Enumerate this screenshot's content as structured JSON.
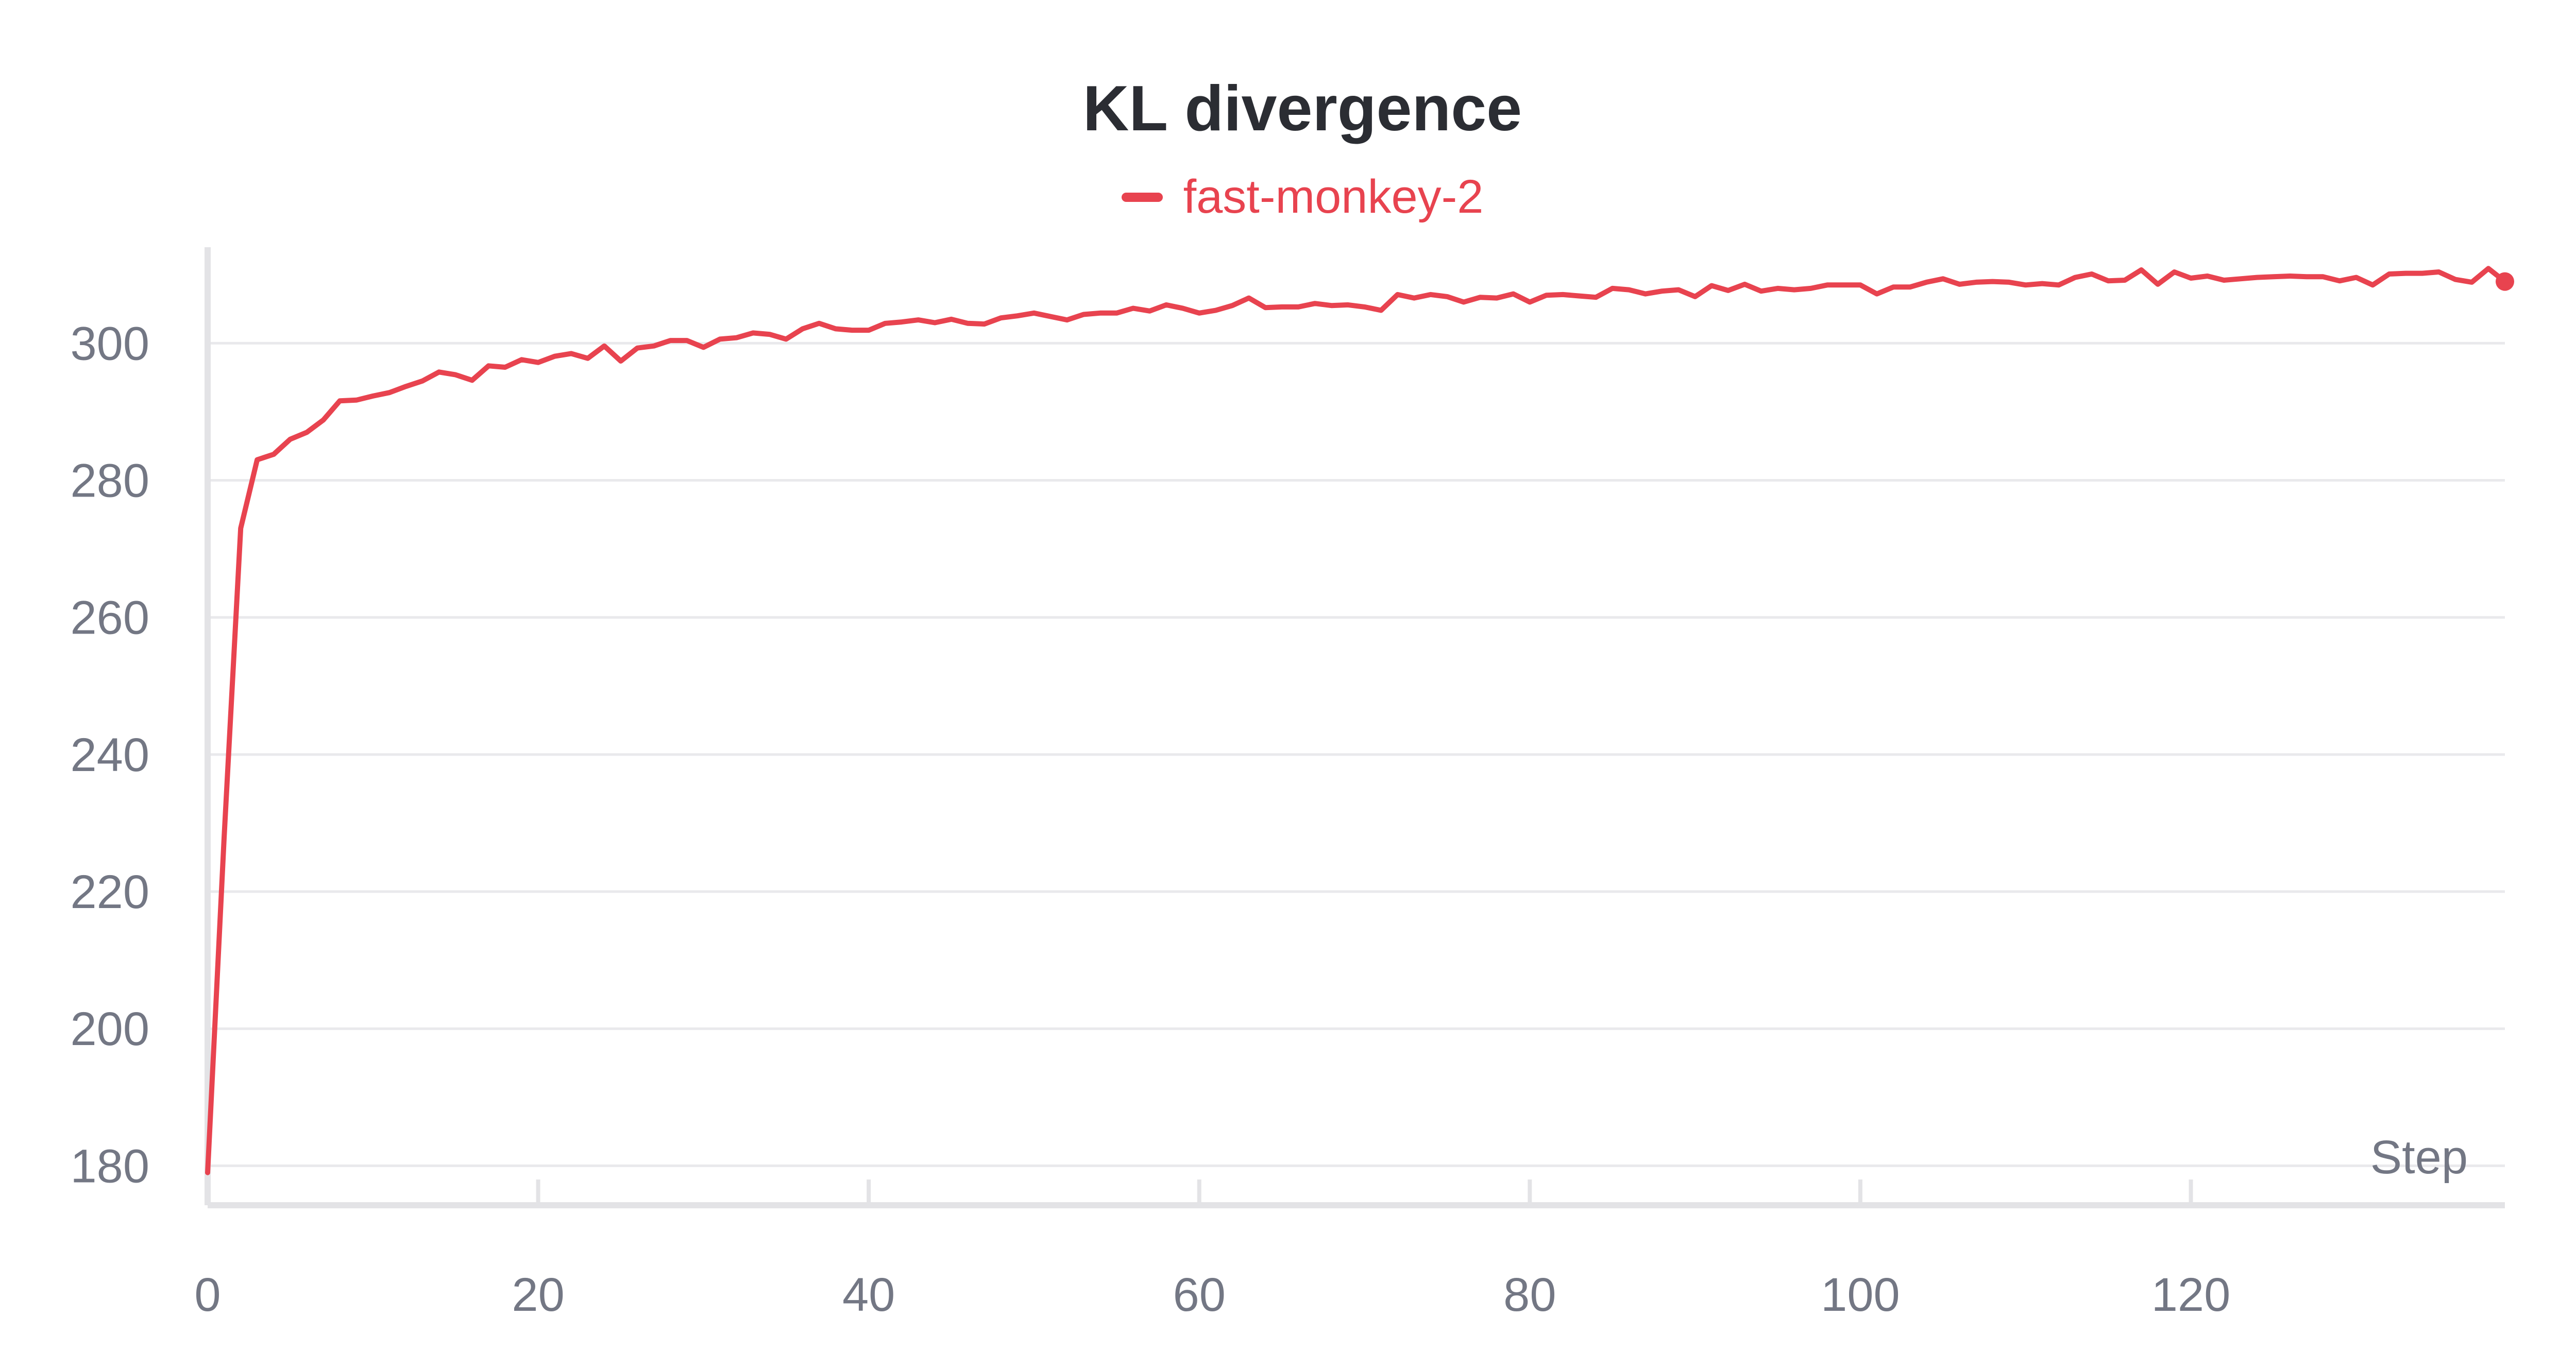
{
  "chart_data": {
    "type": "line",
    "title": "KL divergence",
    "xlabel": "Step",
    "ylabel": "",
    "xlim": [
      0,
      139
    ],
    "ylim": [
      178,
      311
    ],
    "x_ticks": [
      0,
      20,
      40,
      60,
      80,
      100,
      120
    ],
    "y_ticks": [
      180,
      200,
      220,
      240,
      260,
      280,
      300
    ],
    "grid": "horizontal",
    "legend_position": "top-center",
    "series": [
      {
        "name": "fast-monkey-2",
        "color": "#e8434f",
        "x": [
          0,
          1,
          2,
          3,
          4,
          5,
          6,
          7,
          8,
          9,
          10,
          11,
          12,
          13,
          14,
          15,
          16,
          17,
          18,
          19,
          20,
          21,
          22,
          23,
          24,
          25,
          26,
          27,
          28,
          29,
          30,
          31,
          32,
          33,
          34,
          35,
          36,
          37,
          38,
          39,
          40,
          41,
          42,
          43,
          44,
          45,
          46,
          47,
          48,
          49,
          50,
          51,
          52,
          53,
          54,
          55,
          56,
          57,
          58,
          59,
          60,
          61,
          62,
          63,
          64,
          65,
          66,
          67,
          68,
          69,
          70,
          71,
          72,
          73,
          74,
          75,
          76,
          77,
          78,
          79,
          80,
          81,
          82,
          83,
          84,
          85,
          86,
          87,
          88,
          89,
          90,
          91,
          92,
          93,
          94,
          95,
          96,
          97,
          98,
          99,
          100,
          101,
          102,
          103,
          104,
          105,
          106,
          107,
          108,
          109,
          110,
          111,
          112,
          113,
          114,
          115,
          116,
          117,
          118,
          119,
          120,
          121,
          122,
          123,
          124,
          125,
          126,
          127,
          128,
          129,
          130,
          131,
          132,
          133,
          134,
          135,
          136,
          137,
          138,
          139
        ],
        "y": [
          179,
          228,
          273,
          283,
          283.8,
          286,
          287,
          288.8,
          291.6,
          291.7,
          292.3,
          292.8,
          293.7,
          294.5,
          295.8,
          295.4,
          294.6,
          296.7,
          296.5,
          297.6,
          297.2,
          298.1,
          298.5,
          297.8,
          299.6,
          297.4,
          299.3,
          299.6,
          300.4,
          300.4,
          299.4,
          300.6,
          300.8,
          301.5,
          301.3,
          300.6,
          302.1,
          302.9,
          302.1,
          301.9,
          301.9,
          302.9,
          303.1,
          303.4,
          303.0,
          303.5,
          302.9,
          302.8,
          303.7,
          304.0,
          304.4,
          303.9,
          303.4,
          304.2,
          304.4,
          304.4,
          305.1,
          304.7,
          305.6,
          305.1,
          304.4,
          304.8,
          305.5,
          306.6,
          305.2,
          305.3,
          305.3,
          305.8,
          305.5,
          305.6,
          305.3,
          304.8,
          307.1,
          306.6,
          307.1,
          306.8,
          306.0,
          306.7,
          306.6,
          307.2,
          306.0,
          307.0,
          307.1,
          306.9,
          306.7,
          308.0,
          307.8,
          307.2,
          307.6,
          307.8,
          306.8,
          308.4,
          307.7,
          308.6,
          307.6,
          308.0,
          307.8,
          308.0,
          308.5,
          308.5,
          308.5,
          307.2,
          308.2,
          308.2,
          308.9,
          309.4,
          308.6,
          308.9,
          309.0,
          308.9,
          308.5,
          308.7,
          308.5,
          309.6,
          310.1,
          309.1,
          309.2,
          310.7,
          308.6,
          310.4,
          309.5,
          309.8,
          309.2,
          309.4,
          309.6,
          309.7,
          309.8,
          309.7,
          309.7,
          309.1,
          309.6,
          308.5,
          310.1,
          310.2,
          310.2,
          310.4,
          309.3,
          308.9,
          310.9,
          309.0
        ]
      }
    ]
  }
}
